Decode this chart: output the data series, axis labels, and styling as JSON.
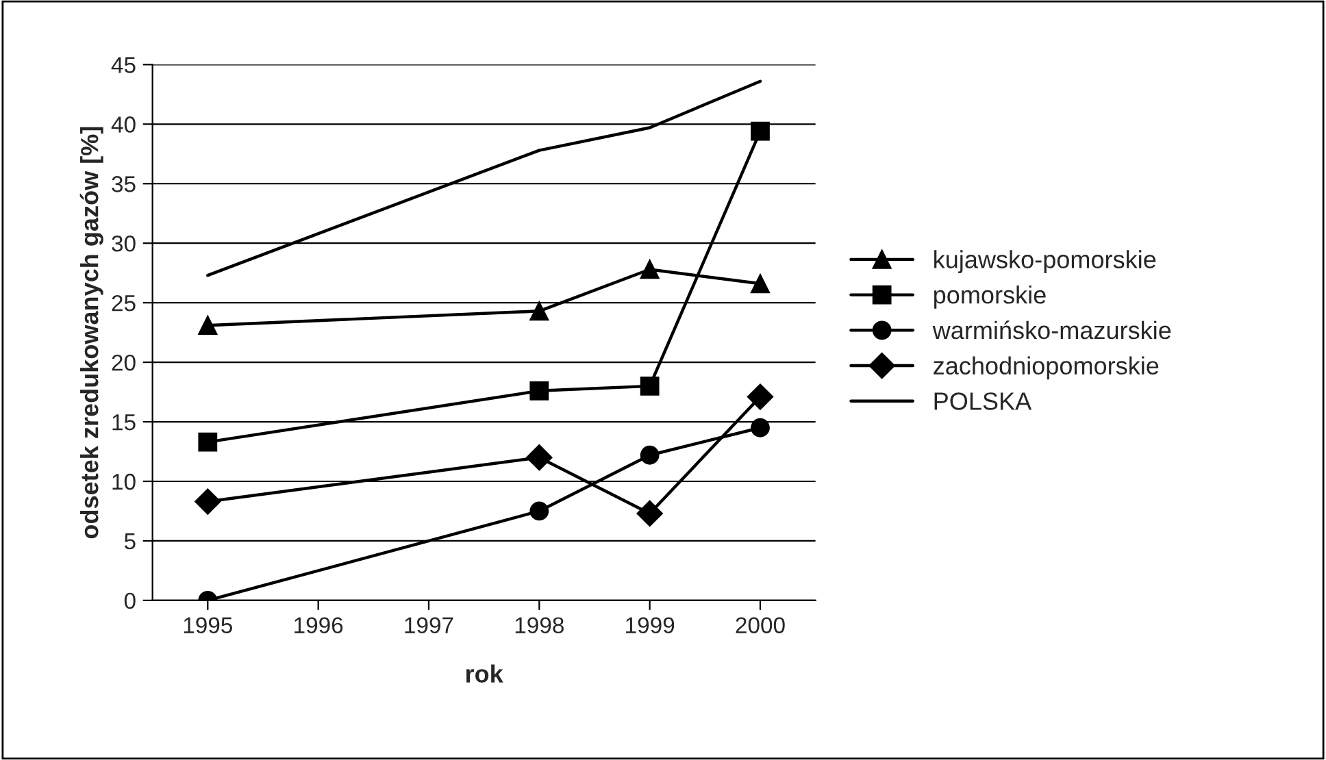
{
  "chart_data": {
    "type": "line",
    "xlabel": "rok",
    "ylabel": "odsetek zredukowanych gazów [%]",
    "x": [
      1995,
      1998,
      1999,
      2000
    ],
    "series": [
      {
        "name": "kujawsko-pomorskie",
        "color": "#000000",
        "marker": "triangle",
        "values": [
          23.1,
          24.3,
          27.8,
          26.6
        ]
      },
      {
        "name": "pomorskie",
        "color": "#000000",
        "marker": "square",
        "values": [
          13.3,
          17.6,
          18.0,
          39.4
        ]
      },
      {
        "name": "warmińsko-mazurskie",
        "color": "#000000",
        "marker": "circle",
        "values": [
          0,
          7.5,
          12.2,
          14.5
        ]
      },
      {
        "name": "zachodniopomorskie",
        "color": "#000000",
        "marker": "diamond",
        "values": [
          8.3,
          12.0,
          7.3,
          17.1
        ]
      },
      {
        "name": "POLSKA",
        "color": "#000000",
        "marker": "none",
        "values": [
          27.3,
          37.8,
          39.7,
          43.6
        ]
      }
    ],
    "xlim": [
      1994.5,
      2000.5
    ],
    "xticks": [
      1995,
      1996,
      1997,
      1998,
      1999,
      2000
    ],
    "ylim": [
      0,
      45
    ],
    "yticks": [
      0,
      5,
      10,
      15,
      20,
      25,
      30,
      35,
      40,
      45
    ],
    "grid": "y",
    "legend": "right",
    "line_style": "solid"
  }
}
